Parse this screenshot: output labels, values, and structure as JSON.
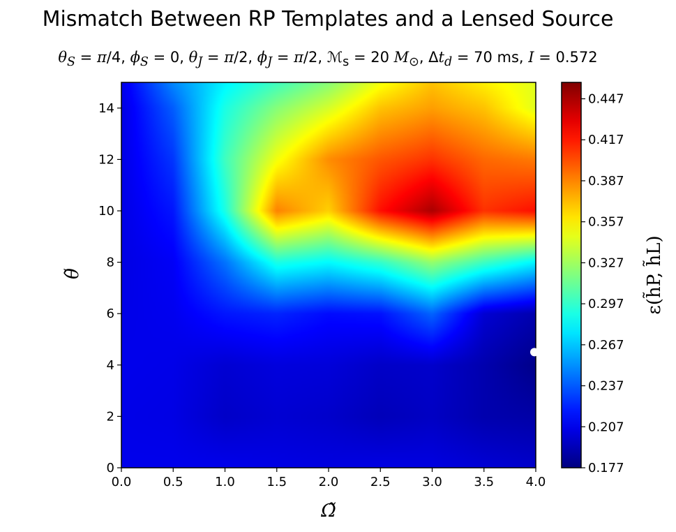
{
  "chart_data": {
    "type": "heatmap",
    "title": "Mismatch Between RP Templates and a Lensed Source",
    "subtitle": "θS = π/4, ϕS = 0, θJ = π/2, ϕJ = π/2, ℳs = 20 M⊙, Δtd = 70 ms, I = 0.572",
    "xlabel": "Ω̃",
    "ylabel": "θ̃",
    "colorbar_label": "ε(h̃P, h̃L)",
    "xlim": [
      0.0,
      4.0
    ],
    "ylim": [
      0,
      15
    ],
    "x_ticks": [
      "0.0",
      "0.5",
      "1.0",
      "1.5",
      "2.0",
      "2.5",
      "3.0",
      "3.5",
      "4.0"
    ],
    "y_ticks": [
      "0",
      "2",
      "4",
      "6",
      "8",
      "10",
      "12",
      "14"
    ],
    "colorbar_ticks": [
      "0.177",
      "0.207",
      "0.237",
      "0.267",
      "0.297",
      "0.327",
      "0.357",
      "0.387",
      "0.417",
      "0.447"
    ],
    "colorbar_range": [
      0.177,
      0.459
    ],
    "colormap": "jet",
    "x": [
      0.0,
      0.5,
      1.0,
      1.5,
      2.0,
      2.5,
      3.0,
      3.5,
      4.0
    ],
    "y": [
      0,
      2,
      4,
      6,
      8,
      10,
      12,
      14,
      15
    ],
    "z": [
      [
        0.207,
        0.207,
        0.207,
        0.205,
        0.204,
        0.205,
        0.204,
        0.201,
        0.198
      ],
      [
        0.206,
        0.205,
        0.197,
        0.2,
        0.198,
        0.193,
        0.196,
        0.19,
        0.188
      ],
      [
        0.207,
        0.206,
        0.2,
        0.203,
        0.202,
        0.197,
        0.198,
        0.19,
        0.18
      ],
      [
        0.206,
        0.208,
        0.218,
        0.222,
        0.215,
        0.217,
        0.24,
        0.2,
        0.19
      ],
      [
        0.205,
        0.21,
        0.244,
        0.29,
        0.282,
        0.297,
        0.324,
        0.3,
        0.28
      ],
      [
        0.205,
        0.218,
        0.29,
        0.388,
        0.366,
        0.42,
        0.447,
        0.41,
        0.42
      ],
      [
        0.205,
        0.227,
        0.3,
        0.35,
        0.385,
        0.4,
        0.41,
        0.395,
        0.39
      ],
      [
        0.204,
        0.238,
        0.29,
        0.32,
        0.342,
        0.37,
        0.38,
        0.37,
        0.345
      ],
      [
        0.206,
        0.25,
        0.28,
        0.3,
        0.32,
        0.35,
        0.37,
        0.357,
        0.345
      ]
    ],
    "marker": {
      "x": 4.0,
      "y": 4.5,
      "color": "#ffffff"
    },
    "grid": false
  }
}
